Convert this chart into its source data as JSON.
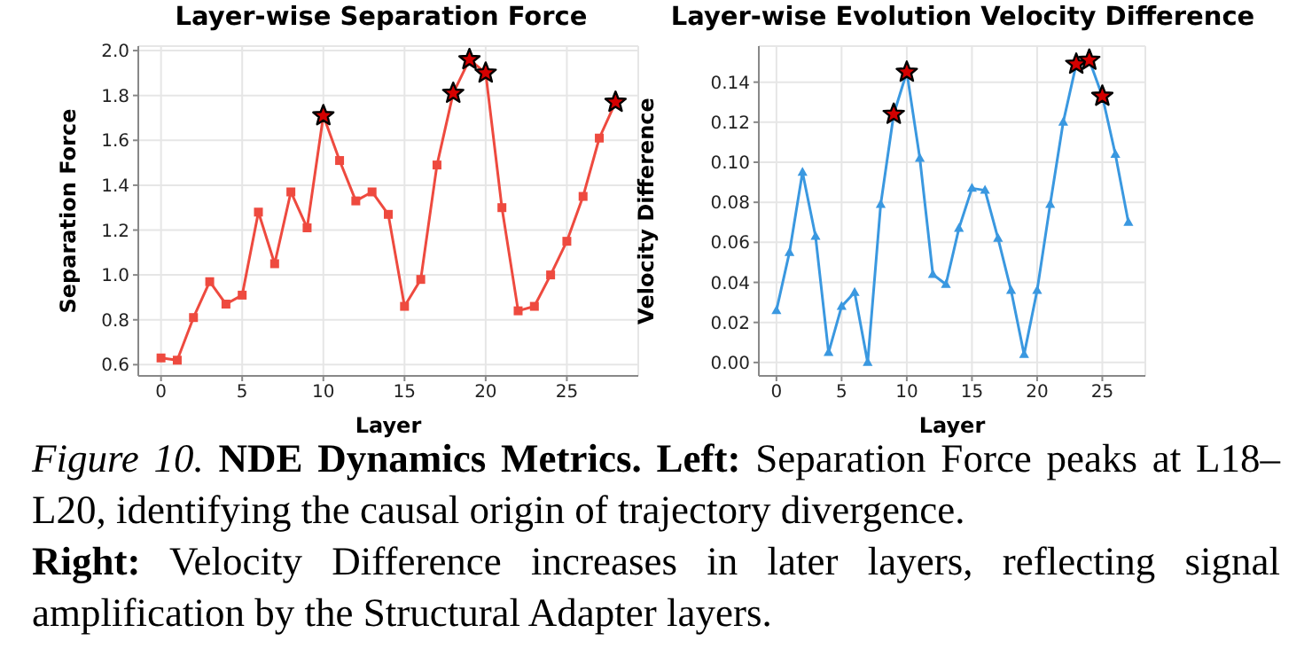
{
  "chart_data": [
    {
      "type": "line",
      "title": "Layer-wise Separation Force",
      "xlabel": "Layer",
      "ylabel": "Separation Force",
      "xlim": [
        -1.4,
        29.4
      ],
      "xticks": [
        0,
        5,
        10,
        15,
        20,
        25
      ],
      "ylim": [
        0.55,
        2.02
      ],
      "yticks": [
        0.6,
        0.8,
        {
          "value": 1,
          "label": "1.0"
        },
        1.2,
        1.4,
        1.6,
        1.8,
        {
          "value": 2,
          "label": "2.0"
        }
      ],
      "grid": true,
      "legend": false,
      "x": [
        0,
        1,
        2,
        3,
        4,
        5,
        6,
        7,
        8,
        9,
        10,
        11,
        12,
        13,
        14,
        15,
        16,
        17,
        18,
        19,
        20,
        21,
        22,
        23,
        24,
        25,
        26,
        27,
        28
      ],
      "series": [
        {
          "color": "#ee4a3f",
          "marker": "square",
          "values": [
            0.63,
            0.62,
            0.81,
            0.97,
            0.87,
            0.91,
            1.28,
            1.05,
            1.37,
            1.21,
            1.71,
            1.51,
            1.33,
            1.37,
            1.27,
            0.86,
            0.98,
            1.49,
            1.81,
            1.96,
            1.9,
            1.3,
            0.84,
            0.86,
            1.0,
            1.15,
            1.35,
            1.61,
            1.77
          ]
        },
        {
          "type": "scatter",
          "color": "#d40000",
          "marker": "star",
          "x": [
            10,
            18,
            19,
            20,
            28
          ],
          "values": [
            1.71,
            1.81,
            1.96,
            1.9,
            1.77
          ]
        }
      ],
      "annotations": [
        "Figure 10.",
        "NDE Dynamics Metrics.",
        "Left:",
        "Separation Force peaks at L18–L20, identifying the causal origin of trajectory divergence.",
        "Right:",
        "Velocity Difference increases in later layers, reflecting signal amplification by the Structural Adapter layers."
      ]
    },
    {
      "type": "line",
      "title": "Layer-wise Evolution Velocity Difference",
      "xlabel": "Layer",
      "ylabel": "Velocity Difference",
      "xlim": [
        -1.35,
        28.3
      ],
      "xticks": [
        0,
        5,
        10,
        15,
        20,
        25
      ],
      "ylim": [
        -0.0067,
        0.158
      ],
      "yticks": [
        {
          "value": 0,
          "label": "0.00"
        },
        0.02,
        0.04,
        0.06,
        0.08,
        {
          "value": 0.1,
          "label": "0.10"
        },
        0.12,
        0.14
      ],
      "grid": true,
      "legend": false,
      "x": [
        0,
        1,
        2,
        3,
        4,
        5,
        6,
        7,
        8,
        9,
        10,
        11,
        12,
        13,
        14,
        15,
        16,
        17,
        18,
        19,
        20,
        21,
        22,
        23,
        24,
        25,
        26,
        27
      ],
      "series": [
        {
          "color": "#3a98e0",
          "marker": "triangle",
          "values": [
            0.026,
            0.055,
            0.095,
            0.063,
            0.005,
            0.028,
            0.035,
            0.0,
            0.079,
            0.124,
            0.145,
            0.102,
            0.044,
            0.039,
            0.067,
            0.087,
            0.086,
            0.062,
            0.036,
            0.004,
            0.036,
            0.079,
            0.12,
            0.149,
            0.151,
            0.133,
            0.104,
            0.07
          ]
        },
        {
          "type": "scatter",
          "color": "#d40000",
          "marker": "star",
          "x": [
            9,
            10,
            23,
            24,
            25
          ],
          "values": [
            0.124,
            0.145,
            0.149,
            0.151,
            0.133
          ]
        }
      ]
    }
  ]
}
